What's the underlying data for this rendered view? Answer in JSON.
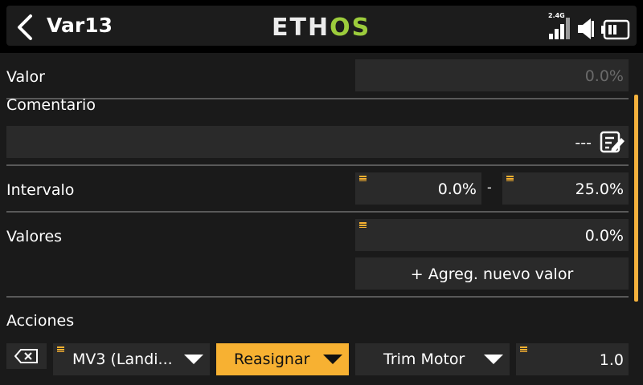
{
  "header": {
    "title": "Var13",
    "logo_part1": "ETH",
    "logo_part2": "OS",
    "band_label": "2.4G"
  },
  "valor": {
    "label": "Valor",
    "value": "0.0%"
  },
  "comentario": {
    "label": "Comentario",
    "value": "---"
  },
  "intervalo": {
    "label": "Intervalo",
    "min": "0.0%",
    "separator": "-",
    "max": "25.0%"
  },
  "valores": {
    "label": "Valores",
    "value": "0.0%",
    "add_button": "+ Agreg. nuevo valor"
  },
  "acciones": {
    "label": "Acciones",
    "source": "MV3 (Landi...",
    "mode": "Reasignar",
    "target": "Trim Motor",
    "amount": "1.0"
  },
  "colors": {
    "accent": "#f7b132",
    "logo_green": "#9ccc3c"
  }
}
